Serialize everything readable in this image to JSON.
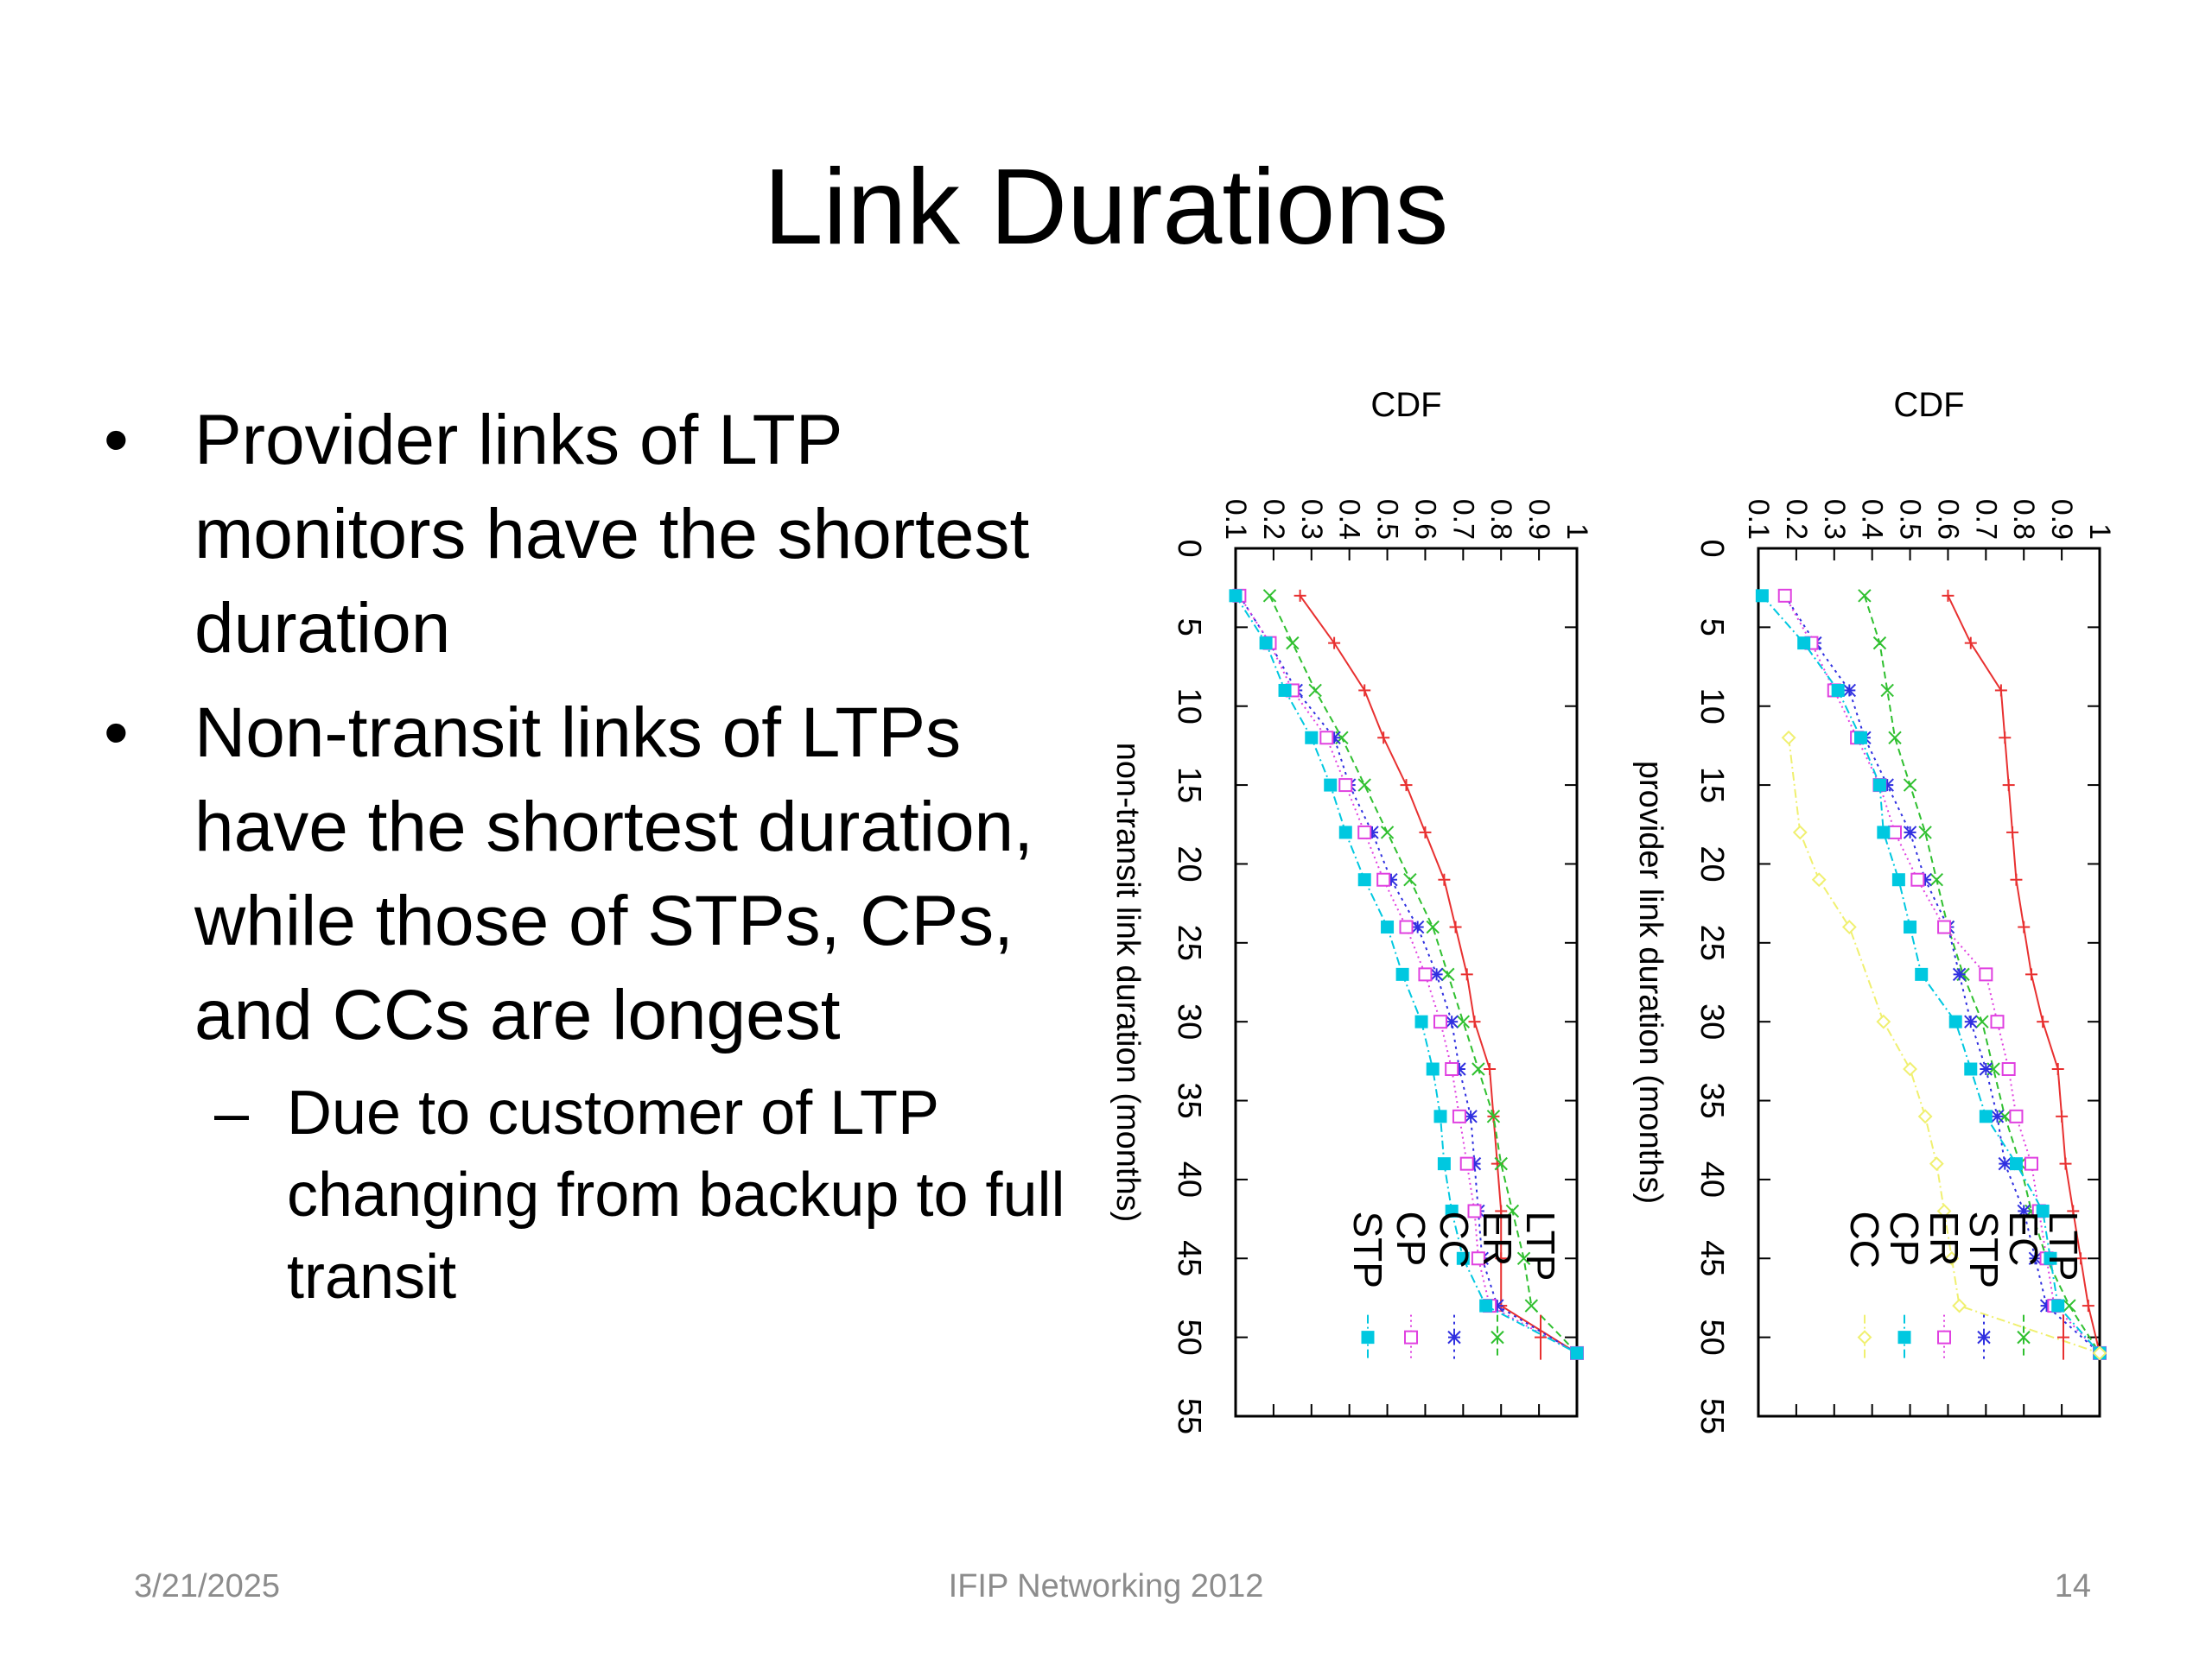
{
  "slide": {
    "title": "Link Durations",
    "bullets": [
      "Provider links of LTP monitors have the shortest duration",
      "Non-transit links of LTPs have the shortest duration, while those of STPs, CPs, and CCs are longest"
    ],
    "sub_bullet": "Due to customer of LTP changing from backup to full transit",
    "footer": {
      "date": "3/21/2025",
      "conference": "IFIP Networking 2012",
      "page": "14"
    }
  },
  "chart_data": [
    {
      "type": "line",
      "ylabel": "CDF",
      "xlabel": "non-transit link duration (months)",
      "xlim": [
        0,
        55
      ],
      "ylim": [
        0.1,
        1
      ],
      "xticks": [
        "0",
        "5",
        "10",
        "15",
        "20",
        "25",
        "30",
        "35",
        "40",
        "45",
        "50",
        "55"
      ],
      "yticks": [
        "0.1",
        "0.2",
        "0.3",
        "0.4",
        "0.5",
        "0.6",
        "0.7",
        "0.8",
        "0.9",
        "1"
      ],
      "legend_position": "bottom-right",
      "series": [
        {
          "name": "LTP",
          "color": "#e83030",
          "marker": "plus",
          "dash": "none",
          "points": [
            [
              3,
              0.27
            ],
            [
              6,
              0.36
            ],
            [
              9,
              0.44
            ],
            [
              12,
              0.49
            ],
            [
              15,
              0.55
            ],
            [
              18,
              0.6
            ],
            [
              21,
              0.65
            ],
            [
              24,
              0.68
            ],
            [
              27,
              0.71
            ],
            [
              30,
              0.73
            ],
            [
              33,
              0.77
            ],
            [
              36,
              0.78
            ],
            [
              39,
              0.79
            ],
            [
              42,
              0.8
            ],
            [
              45,
              0.8
            ],
            [
              48,
              0.8
            ],
            [
              51,
              1.0
            ]
          ]
        },
        {
          "name": "ER",
          "color": "#30c030",
          "marker": "x",
          "dash": "8 5",
          "points": [
            [
              3,
              0.19
            ],
            [
              6,
              0.25
            ],
            [
              9,
              0.31
            ],
            [
              12,
              0.38
            ],
            [
              15,
              0.44
            ],
            [
              18,
              0.5
            ],
            [
              21,
              0.56
            ],
            [
              24,
              0.62
            ],
            [
              27,
              0.66
            ],
            [
              30,
              0.7
            ],
            [
              33,
              0.74
            ],
            [
              36,
              0.78
            ],
            [
              39,
              0.8
            ],
            [
              42,
              0.83
            ],
            [
              45,
              0.86
            ],
            [
              48,
              0.88
            ],
            [
              51,
              1.0
            ]
          ]
        },
        {
          "name": "CC",
          "color": "#3030e0",
          "marker": "star",
          "dash": "3 5",
          "points": [
            [
              3,
              0.11
            ],
            [
              6,
              0.19
            ],
            [
              9,
              0.26
            ],
            [
              12,
              0.36
            ],
            [
              15,
              0.4
            ],
            [
              18,
              0.46
            ],
            [
              21,
              0.51
            ],
            [
              24,
              0.58
            ],
            [
              27,
              0.63
            ],
            [
              30,
              0.67
            ],
            [
              33,
              0.69
            ],
            [
              36,
              0.72
            ],
            [
              39,
              0.73
            ],
            [
              42,
              0.74
            ],
            [
              45,
              0.75
            ],
            [
              48,
              0.79
            ],
            [
              51,
              1.0
            ]
          ]
        },
        {
          "name": "CP",
          "color": "#e040e0",
          "marker": "square-open",
          "dash": "2 4",
          "points": [
            [
              3,
              0.11
            ],
            [
              6,
              0.19
            ],
            [
              9,
              0.25
            ],
            [
              12,
              0.34
            ],
            [
              15,
              0.39
            ],
            [
              18,
              0.44
            ],
            [
              21,
              0.49
            ],
            [
              24,
              0.55
            ],
            [
              27,
              0.6
            ],
            [
              30,
              0.64
            ],
            [
              33,
              0.67
            ],
            [
              36,
              0.69
            ],
            [
              39,
              0.71
            ],
            [
              42,
              0.73
            ],
            [
              45,
              0.74
            ],
            [
              48,
              0.77
            ],
            [
              51,
              1.0
            ]
          ]
        },
        {
          "name": "STP",
          "color": "#00c8e0",
          "marker": "square-filled",
          "dash": "10 4 2 4",
          "points": [
            [
              3,
              0.1
            ],
            [
              6,
              0.18
            ],
            [
              9,
              0.23
            ],
            [
              12,
              0.3
            ],
            [
              15,
              0.35
            ],
            [
              18,
              0.39
            ],
            [
              21,
              0.44
            ],
            [
              24,
              0.5
            ],
            [
              27,
              0.54
            ],
            [
              30,
              0.59
            ],
            [
              33,
              0.62
            ],
            [
              36,
              0.64
            ],
            [
              39,
              0.65
            ],
            [
              42,
              0.67
            ],
            [
              45,
              0.7
            ],
            [
              48,
              0.76
            ],
            [
              51,
              1.0
            ]
          ]
        }
      ]
    },
    {
      "type": "line",
      "ylabel": "CDF",
      "xlabel": "provider link duration (months)",
      "xlim": [
        0,
        55
      ],
      "ylim": [
        0.1,
        1
      ],
      "xticks": [
        "0",
        "5",
        "10",
        "15",
        "20",
        "25",
        "30",
        "35",
        "40",
        "45",
        "50",
        "55"
      ],
      "yticks": [
        "0.1",
        "0.2",
        "0.3",
        "0.4",
        "0.5",
        "0.6",
        "0.7",
        "0.8",
        "0.9",
        "1"
      ],
      "legend_position": "bottom-right",
      "series": [
        {
          "name": "LTP",
          "color": "#e83030",
          "marker": "plus",
          "dash": "none",
          "points": [
            [
              3,
              0.6
            ],
            [
              6,
              0.66
            ],
            [
              9,
              0.74
            ],
            [
              12,
              0.75
            ],
            [
              15,
              0.76
            ],
            [
              18,
              0.77
            ],
            [
              21,
              0.78
            ],
            [
              24,
              0.8
            ],
            [
              27,
              0.82
            ],
            [
              30,
              0.85
            ],
            [
              33,
              0.89
            ],
            [
              36,
              0.9
            ],
            [
              39,
              0.91
            ],
            [
              42,
              0.93
            ],
            [
              45,
              0.95
            ],
            [
              48,
              0.97
            ],
            [
              51,
              1.0
            ]
          ]
        },
        {
          "name": "EC",
          "color": "#30c030",
          "marker": "x",
          "dash": "8 5",
          "points": [
            [
              3,
              0.38
            ],
            [
              6,
              0.42
            ],
            [
              9,
              0.44
            ],
            [
              12,
              0.46
            ],
            [
              15,
              0.5
            ],
            [
              18,
              0.54
            ],
            [
              21,
              0.57
            ],
            [
              24,
              0.6
            ],
            [
              27,
              0.64
            ],
            [
              30,
              0.69
            ],
            [
              33,
              0.72
            ],
            [
              36,
              0.75
            ],
            [
              39,
              0.79
            ],
            [
              42,
              0.82
            ],
            [
              45,
              0.86
            ],
            [
              48,
              0.92
            ],
            [
              51,
              1.0
            ]
          ]
        },
        {
          "name": "STP",
          "color": "#3030e0",
          "marker": "star",
          "dash": "3 5",
          "points": [
            [
              3,
              0.17
            ],
            [
              6,
              0.25
            ],
            [
              9,
              0.34
            ],
            [
              12,
              0.38
            ],
            [
              15,
              0.44
            ],
            [
              18,
              0.5
            ],
            [
              21,
              0.54
            ],
            [
              24,
              0.6
            ],
            [
              27,
              0.63
            ],
            [
              30,
              0.66
            ],
            [
              33,
              0.7
            ],
            [
              36,
              0.73
            ],
            [
              39,
              0.75
            ],
            [
              42,
              0.8
            ],
            [
              45,
              0.83
            ],
            [
              48,
              0.86
            ],
            [
              51,
              1.0
            ]
          ]
        },
        {
          "name": "ER",
          "color": "#e040e0",
          "marker": "square-open",
          "dash": "2 4",
          "points": [
            [
              3,
              0.17
            ],
            [
              6,
              0.24
            ],
            [
              9,
              0.3
            ],
            [
              12,
              0.36
            ],
            [
              15,
              0.42
            ],
            [
              18,
              0.46
            ],
            [
              21,
              0.52
            ],
            [
              24,
              0.59
            ],
            [
              27,
              0.7
            ],
            [
              30,
              0.73
            ],
            [
              33,
              0.76
            ],
            [
              36,
              0.78
            ],
            [
              39,
              0.82
            ],
            [
              42,
              0.84
            ],
            [
              45,
              0.86
            ],
            [
              48,
              0.88
            ],
            [
              51,
              1.0
            ]
          ]
        },
        {
          "name": "CP",
          "color": "#00c8e0",
          "marker": "square-filled",
          "dash": "10 4 2 4",
          "points": [
            [
              3,
              0.11
            ],
            [
              6,
              0.22
            ],
            [
              9,
              0.31
            ],
            [
              12,
              0.37
            ],
            [
              15,
              0.42
            ],
            [
              18,
              0.43
            ],
            [
              21,
              0.47
            ],
            [
              24,
              0.5
            ],
            [
              27,
              0.53
            ],
            [
              30,
              0.62
            ],
            [
              33,
              0.66
            ],
            [
              36,
              0.7
            ],
            [
              39,
              0.78
            ],
            [
              42,
              0.85
            ],
            [
              45,
              0.87
            ],
            [
              48,
              0.89
            ],
            [
              51,
              1.0
            ]
          ]
        },
        {
          "name": "CC",
          "color": "#f0f070",
          "marker": "diamond-open",
          "dash": "10 4 2 4",
          "points": [
            [
              12,
              0.18
            ],
            [
              18,
              0.21
            ],
            [
              21,
              0.26
            ],
            [
              24,
              0.34
            ],
            [
              30,
              0.43
            ],
            [
              33,
              0.5
            ],
            [
              36,
              0.54
            ],
            [
              39,
              0.57
            ],
            [
              42,
              0.59
            ],
            [
              45,
              0.61
            ],
            [
              48,
              0.63
            ],
            [
              51,
              1.0
            ]
          ]
        }
      ]
    }
  ]
}
